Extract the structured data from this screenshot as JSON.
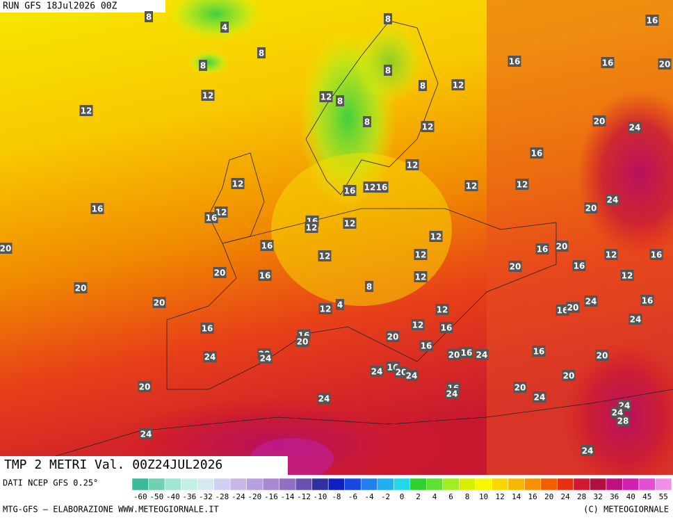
{
  "header": {
    "run": "RUN GFS 18Jul2026 00Z"
  },
  "map": {
    "title": "TMP 2 METRI Val. 00Z24JUL2026",
    "labels": [
      8,
      4,
      8,
      8,
      12,
      12,
      8,
      16,
      16,
      16,
      20,
      8,
      8,
      12,
      12,
      8,
      8,
      12,
      20,
      24,
      16,
      12,
      12,
      12,
      12,
      16,
      12,
      16,
      24,
      20,
      16,
      12,
      16,
      16,
      12,
      12,
      12,
      16,
      16,
      20,
      20,
      12,
      12,
      12,
      16,
      20,
      16,
      20,
      16,
      12,
      12,
      20,
      8,
      20,
      12,
      4,
      12,
      16,
      20,
      24,
      16,
      12,
      16,
      24,
      16,
      16,
      20,
      20,
      16,
      20,
      16,
      24,
      16,
      20,
      24,
      20,
      24,
      24,
      16,
      20,
      24,
      20,
      20,
      16,
      24,
      20,
      24,
      24,
      24,
      24,
      28,
      24,
      24
    ]
  },
  "legend": {
    "source": "DATI NCEP GFS 0.25°",
    "ticks": [
      -60,
      -50,
      -40,
      -36,
      -32,
      -28,
      -24,
      -20,
      -16,
      -14,
      -12,
      -10,
      -8,
      -6,
      -4,
      -2,
      0,
      2,
      4,
      6,
      8,
      10,
      12,
      14,
      16,
      20,
      24,
      28,
      32,
      36,
      40,
      45,
      55
    ],
    "colors": [
      "#3cb89a",
      "#6fd0b4",
      "#9ee6d2",
      "#c2f0e6",
      "#d8e8f0",
      "#d0d0f0",
      "#c8b8e8",
      "#b8a0e0",
      "#a888d0",
      "#9070c0",
      "#6a50b0",
      "#3030a0",
      "#1020c0",
      "#1848e0",
      "#2080f0",
      "#20b0f0",
      "#20d8e8",
      "#30d030",
      "#60e030",
      "#a0f020",
      "#d8f000",
      "#f8f800",
      "#f8d800",
      "#f8b800",
      "#f89000",
      "#f06000",
      "#e83010",
      "#d01830",
      "#b01040",
      "#c01080",
      "#d020b0",
      "#e050d0",
      "#f090e8"
    ]
  },
  "footer": {
    "left": "MTG-GFS — ELABORAZIONE WWW.METEOGIORNALE.IT",
    "right": "(C) METEOGIORNALE"
  }
}
